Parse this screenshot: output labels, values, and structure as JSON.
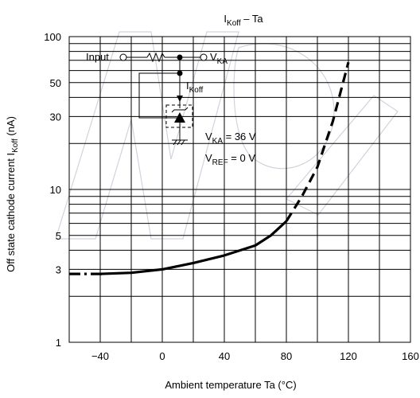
{
  "chart_data": {
    "type": "line",
    "title": {
      "main": "I",
      "sub": "Koff",
      "rest": " – Ta"
    },
    "xlabel": "Ambient temperature    Ta    (°C)",
    "ylabel": {
      "pre": "Off state cathode current    I",
      "sub": "Koff",
      "post": "    (nA)"
    },
    "x_scale": "linear",
    "y_scale": "log",
    "xlim": [
      -60,
      160
    ],
    "ylim": [
      1,
      100
    ],
    "x_ticks": [
      -40,
      0,
      40,
      80,
      120,
      160
    ],
    "y_ticks": [
      1,
      3,
      5,
      10,
      30,
      50,
      100
    ],
    "grid": true,
    "series": [
      {
        "line_style": "solid",
        "x": [
          -40,
          -20,
          0,
          20,
          40,
          60,
          70,
          80
        ],
        "y": [
          2.8,
          2.85,
          3.0,
          3.3,
          3.7,
          4.3,
          5.0,
          6.2
        ]
      },
      {
        "line_style": "dashdot",
        "x": [
          -60,
          -38
        ],
        "y": [
          2.8,
          2.8
        ]
      },
      {
        "line_style": "dashed",
        "x": [
          80,
          90,
          100,
          110,
          120
        ],
        "y": [
          6.2,
          9,
          14,
          28,
          68
        ]
      }
    ],
    "inset_circuit": {
      "input_label": "Input",
      "vka_label": {
        "main": "V",
        "sub": "KA"
      },
      "ikoff_label": {
        "main": "I",
        "sub": "Koff"
      },
      "conditions": [
        {
          "main": "V",
          "sub": "KA",
          "rest": " = 36 V"
        },
        {
          "main": "V",
          "sub": "REF",
          "rest": " = 0 V"
        }
      ]
    }
  }
}
